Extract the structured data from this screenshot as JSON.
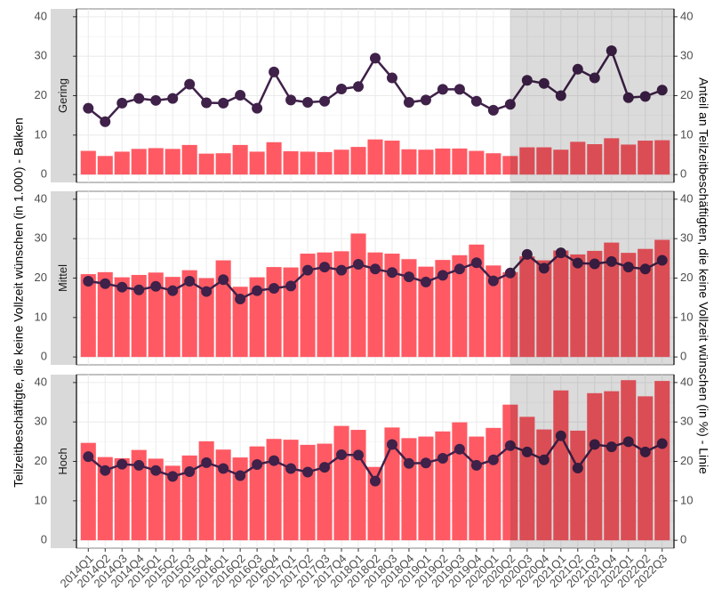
{
  "chart_data": {
    "type": "bar",
    "y_label": "Teilzeitbeschäftigte, die keine Vollzeit wünschen (in 1.000) - Balken",
    "y2_label": "Anteil an Teilzeitbeschäftigten, die keine Vollzeit wünschen (in %) - Linie",
    "categories": [
      "2014Q1",
      "2014Q2",
      "2014Q3",
      "2014Q4",
      "2015Q1",
      "2015Q2",
      "2015Q3",
      "2015Q4",
      "2016Q1",
      "2016Q2",
      "2016Q3",
      "2016Q4",
      "2017Q1",
      "2017Q2",
      "2017Q3",
      "2017Q4",
      "2018Q1",
      "2018Q2",
      "2018Q3",
      "2018Q4",
      "2019Q1",
      "2019Q2",
      "2019Q3",
      "2019Q4",
      "2020Q1",
      "2020Q2",
      "2020Q3",
      "2020Q4",
      "2021Q1",
      "2021Q2",
      "2021Q3",
      "2021Q4",
      "2022Q1",
      "2022Q2",
      "2022Q3"
    ],
    "highlight_start": "2020Q2",
    "bar_color": "#ff5a64",
    "line_color": "#3f2149",
    "ylim": [
      -2,
      42
    ],
    "yticks": [
      0,
      10,
      20,
      30,
      40
    ],
    "y2lim": [
      -2,
      42
    ],
    "y2ticks": [
      0,
      10,
      20,
      30,
      40
    ],
    "grid": true,
    "facets": [
      {
        "label": "Gering",
        "bars": [
          6,
          4.7,
          5.8,
          6.5,
          6.7,
          6.5,
          7.5,
          5.3,
          5.4,
          7.5,
          5.8,
          8.2,
          5.9,
          5.8,
          5.7,
          6.3,
          7,
          8.9,
          8.6,
          6.4,
          6.3,
          6.6,
          6.6,
          6,
          5.4,
          4.7,
          6.9,
          6.9,
          6.3,
          8.3,
          7.7,
          9.2,
          7.6,
          8.6,
          8.7
        ],
        "line": [
          16.8,
          13.4,
          18.1,
          19.3,
          18.8,
          19.3,
          22.9,
          18.2,
          18.1,
          20.1,
          16.8,
          26,
          18.9,
          18.3,
          18.6,
          21.7,
          22.3,
          29.5,
          24.5,
          18.3,
          18.9,
          21.6,
          21.6,
          18.6,
          16.3,
          17.8,
          23.9,
          23.1,
          20,
          26.7,
          24.5,
          31.4,
          19.5,
          19.8,
          21.4
        ]
      },
      {
        "label": "Mittel",
        "bars": [
          21,
          21.5,
          20.2,
          20.8,
          21.4,
          20.3,
          22,
          20,
          24.5,
          17.8,
          20.2,
          22.8,
          22.7,
          26.2,
          26.5,
          26.8,
          31.3,
          26.5,
          26.2,
          24.8,
          22.9,
          24.6,
          25.8,
          28.5,
          23.2,
          21.5,
          25.5,
          24.5,
          27,
          26,
          26.9,
          29,
          26.4,
          27.4,
          29.7
        ],
        "line": [
          19.2,
          18.6,
          17.7,
          17,
          17.9,
          16.8,
          19.2,
          16.6,
          19.6,
          14.7,
          16.8,
          17.4,
          18,
          22,
          22.8,
          22,
          23.5,
          22.3,
          21.4,
          20.3,
          19,
          20.7,
          22.3,
          23.9,
          19.3,
          21.3,
          26,
          22.5,
          26.4,
          23.8,
          23.6,
          24.2,
          22.8,
          22.3,
          24.5
        ]
      },
      {
        "label": "Hoch",
        "bars": [
          24.7,
          21.1,
          20.8,
          22.9,
          20.7,
          18.9,
          21.5,
          25.1,
          23,
          21,
          23.8,
          25.7,
          25.5,
          24.2,
          24.5,
          29,
          28,
          18.6,
          28.6,
          25.9,
          26.3,
          27.6,
          29.9,
          26.3,
          28.5,
          34.4,
          31.3,
          28.1,
          38,
          27.8,
          37.3,
          37.8,
          40.6,
          36.5,
          40.4
        ],
        "line": [
          21.2,
          17.7,
          19.3,
          19,
          17.7,
          16.2,
          17.4,
          19.7,
          18.2,
          16.4,
          19.2,
          20.2,
          18.2,
          17.3,
          18.5,
          21.7,
          21.6,
          15,
          24.3,
          19.5,
          19.6,
          20.8,
          23.1,
          19,
          20.4,
          24,
          22.4,
          20.4,
          26.5,
          18.3,
          24.3,
          23.7,
          25,
          22.4,
          24.5
        ]
      }
    ]
  }
}
